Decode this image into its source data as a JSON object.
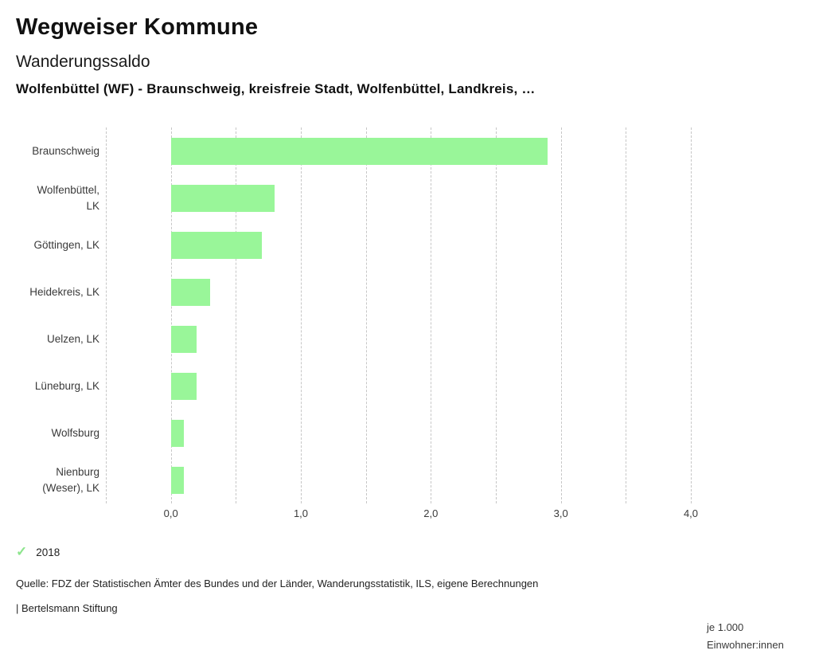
{
  "header": {
    "title": "Wegweiser Kommune",
    "subtitle": "Wanderungssaldo",
    "selection": "Wolfenbüttel (WF) - Braunschweig, kreisfreie Stadt, Wolfenbüttel, Landkreis, …"
  },
  "chart_data": {
    "type": "bar",
    "orientation": "horizontal",
    "title": "Wanderungssaldo",
    "categories": [
      "Braunschweig",
      "Wolfenbüttel, LK",
      "Göttingen, LK",
      "Heidekreis, LK",
      "Uelzen, LK",
      "Lüneburg, LK",
      "Wolfsburg",
      "Nienburg (Weser), LK"
    ],
    "label_lines": [
      [
        "Braunschweig"
      ],
      [
        "Wolfenbüttel,",
        "LK"
      ],
      [
        "Göttingen, LK"
      ],
      [
        "Heidekreis, LK"
      ],
      [
        "Uelzen, LK"
      ],
      [
        "Lüneburg, LK"
      ],
      [
        "Wolfsburg"
      ],
      [
        "Nienburg",
        "(Weser), LK"
      ]
    ],
    "series": [
      {
        "name": "2018",
        "values": [
          2.9,
          0.8,
          0.7,
          0.3,
          0.2,
          0.2,
          0.1,
          0.1
        ]
      }
    ],
    "xlim": [
      -0.5,
      4.0
    ],
    "x_ticks": [
      {
        "value": 0,
        "label": "0,0"
      },
      {
        "value": 1,
        "label": "1,0"
      },
      {
        "value": 2,
        "label": "2,0"
      },
      {
        "value": 3,
        "label": "3,0"
      },
      {
        "value": 4,
        "label": "4,0"
      }
    ],
    "grid": true,
    "grid_step": 0.5,
    "unit_lines": [
      "je 1.000",
      "Einwohner:innen"
    ],
    "bar_color": "#99f699",
    "gridline_color": "#c6c6c6"
  },
  "legend": {
    "check_icon": "✓",
    "check_color": "#8de58d",
    "year": "2018"
  },
  "footer": {
    "source": "Quelle: FDZ der Statistischen Ämter des Bundes und der Länder, Wanderungsstatistik, ILS, eigene Berechnungen",
    "brand": "| Bertelsmann Stiftung"
  }
}
